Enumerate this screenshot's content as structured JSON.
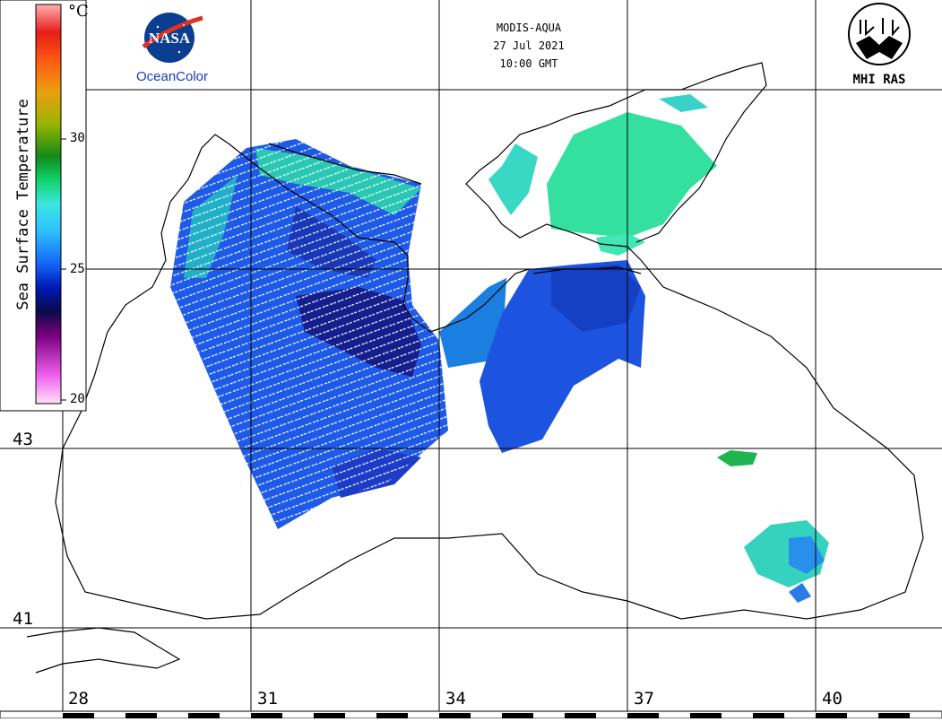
{
  "header": {
    "satellite": "MODIS-AQUA",
    "date": "27 Jul 2021",
    "time": "10:00 GMT"
  },
  "logos": {
    "nasa_text": "NASA",
    "nasa_subtitle": "OceanColor",
    "mhi_text": "MHI RAS"
  },
  "colorbar": {
    "title": "Sea Surface Temperature",
    "unit": "°C",
    "ticks": [
      "30",
      "25",
      "20"
    ],
    "range": [
      20,
      35
    ],
    "colors": [
      "#ffd8f4",
      "#f04cf0",
      "#70007c",
      "#0a0a5a",
      "#0020c8",
      "#1e78ff",
      "#3cdcf0",
      "#14c864",
      "#1e9614",
      "#96b400",
      "#e6a014",
      "#ff5014",
      "#e61e14",
      "#ffa0a0"
    ]
  },
  "graticule": {
    "latitudes": [
      "43",
      "41"
    ],
    "longitudes": [
      "28",
      "31",
      "34",
      "37",
      "40"
    ]
  },
  "map": {
    "region": "Black Sea",
    "variable": "Sea Surface Temperature",
    "colors": {
      "land": "#ffffff",
      "coast": "#000000",
      "grid": "#000000",
      "sst_warm_coast": "#2ee8a0",
      "sst_mid": "#1e64f0",
      "sst_cool": "#0a1a8a"
    }
  }
}
